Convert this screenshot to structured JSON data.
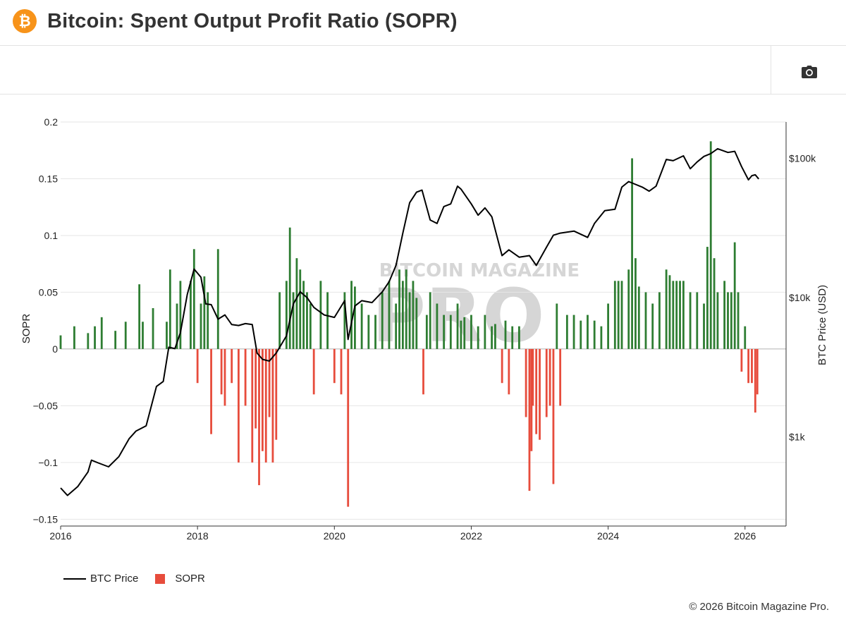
{
  "header": {
    "title": "Bitcoin: Spent Output Profit Ratio (SOPR)",
    "logo_glyph": "₿",
    "logo_color": "#f7931a"
  },
  "toolbar": {
    "camera_icon": "camera-icon"
  },
  "watermark": {
    "top": "BITCOIN MAGAZINE",
    "big": "PRO"
  },
  "legend": {
    "price_label": "BTC Price",
    "sopr_label": "SOPR"
  },
  "footer": {
    "copyright": "© 2026 Bitcoin Magazine Pro."
  },
  "colors": {
    "positive": "#2e7d32",
    "negative": "#e74c3c",
    "price_line": "#000000"
  },
  "chart_data": {
    "type": "bar",
    "title": "Bitcoin: Spent Output Profit Ratio (SOPR)",
    "xlabel": "",
    "ylabel": "SOPR",
    "y2label": "BTC Price (USD)",
    "x_ticks": [
      "2016",
      "2018",
      "2020",
      "2022",
      "2024",
      "2026"
    ],
    "y_ticks": [
      "0.2",
      "0.15",
      "0.1",
      "0.05",
      "0",
      "−0.05",
      "−0.1",
      "−0.15"
    ],
    "y2_ticks": [
      "$1k",
      "$10k",
      "$100k"
    ],
    "ylim": [
      -0.156,
      0.2
    ],
    "y2_log_range": [
      2.36,
      5.26
    ],
    "xlim": [
      2016.0,
      2026.6
    ],
    "series": [
      {
        "name": "BTC Price",
        "type": "line",
        "x": [
          2016.0,
          2016.1,
          2016.25,
          2016.4,
          2016.45,
          2016.55,
          2016.7,
          2016.85,
          2017.0,
          2017.1,
          2017.25,
          2017.4,
          2017.5,
          2017.58,
          2017.67,
          2017.75,
          2017.85,
          2017.95,
          2018.05,
          2018.12,
          2018.2,
          2018.3,
          2018.4,
          2018.5,
          2018.6,
          2018.7,
          2018.8,
          2018.87,
          2018.95,
          2019.05,
          2019.15,
          2019.3,
          2019.4,
          2019.5,
          2019.6,
          2019.7,
          2019.85,
          2020.0,
          2020.15,
          2020.2,
          2020.3,
          2020.4,
          2020.55,
          2020.7,
          2020.8,
          2020.9,
          2021.0,
          2021.1,
          2021.2,
          2021.28,
          2021.4,
          2021.5,
          2021.6,
          2021.7,
          2021.8,
          2021.85,
          2022.0,
          2022.1,
          2022.2,
          2022.3,
          2022.45,
          2022.55,
          2022.7,
          2022.85,
          2022.95,
          2023.1,
          2023.2,
          2023.3,
          2023.5,
          2023.7,
          2023.8,
          2023.95,
          2024.1,
          2024.2,
          2024.3,
          2024.5,
          2024.6,
          2024.7,
          2024.85,
          2024.95,
          2025.1,
          2025.2,
          2025.3,
          2025.4,
          2025.5,
          2025.6,
          2025.75,
          2025.85,
          2025.95,
          2026.05,
          2026.1,
          2026.15,
          2026.2
        ],
        "values": [
          430,
          380,
          440,
          560,
          680,
          650,
          610,
          720,
          970,
          1100,
          1200,
          2300,
          2500,
          4400,
          4300,
          5600,
          10500,
          16000,
          14000,
          9000,
          8900,
          7000,
          7500,
          6400,
          6300,
          6500,
          6400,
          4000,
          3600,
          3500,
          4000,
          5300,
          9000,
          11000,
          10000,
          8500,
          7500,
          7200,
          9500,
          5000,
          8700,
          9500,
          9200,
          11000,
          13000,
          17000,
          29000,
          48000,
          57000,
          59000,
          36000,
          34000,
          45000,
          47000,
          63000,
          60000,
          47000,
          39000,
          44000,
          38000,
          20000,
          22000,
          19500,
          20000,
          17000,
          23000,
          28000,
          29000,
          30000,
          27000,
          34000,
          42000,
          43000,
          62000,
          68000,
          62000,
          58000,
          63000,
          98000,
          96000,
          104000,
          84000,
          94000,
          103000,
          108000,
          117000,
          110000,
          112000,
          87000,
          70000,
          75000,
          76000,
          71000
        ]
      },
      {
        "name": "SOPR",
        "type": "bar",
        "x": [
          2016.0,
          2016.2,
          2016.4,
          2016.5,
          2016.6,
          2016.8,
          2016.95,
          2017.15,
          2017.2,
          2017.35,
          2017.55,
          2017.6,
          2017.7,
          2017.75,
          2017.9,
          2017.95,
          2018.0,
          2018.05,
          2018.1,
          2018.15,
          2018.2,
          2018.3,
          2018.35,
          2018.4,
          2018.5,
          2018.6,
          2018.7,
          2018.8,
          2018.85,
          2018.9,
          2018.95,
          2019.0,
          2019.05,
          2019.1,
          2019.15,
          2019.2,
          2019.3,
          2019.35,
          2019.4,
          2019.45,
          2019.5,
          2019.55,
          2019.6,
          2019.65,
          2019.7,
          2019.8,
          2019.9,
          2020.0,
          2020.1,
          2020.15,
          2020.2,
          2020.25,
          2020.3,
          2020.4,
          2020.5,
          2020.6,
          2020.7,
          2020.8,
          2020.9,
          2020.95,
          2021.0,
          2021.05,
          2021.1,
          2021.15,
          2021.2,
          2021.3,
          2021.35,
          2021.4,
          2021.5,
          2021.6,
          2021.7,
          2021.8,
          2021.85,
          2021.9,
          2022.0,
          2022.1,
          2022.2,
          2022.3,
          2022.35,
          2022.45,
          2022.5,
          2022.55,
          2022.6,
          2022.7,
          2022.8,
          2022.85,
          2022.88,
          2022.9,
          2022.95,
          2023.0,
          2023.1,
          2023.15,
          2023.2,
          2023.25,
          2023.3,
          2023.4,
          2023.5,
          2023.6,
          2023.7,
          2023.8,
          2023.9,
          2024.0,
          2024.1,
          2024.15,
          2024.2,
          2024.3,
          2024.35,
          2024.4,
          2024.45,
          2024.55,
          2024.65,
          2024.75,
          2024.85,
          2024.9,
          2024.95,
          2025.0,
          2025.05,
          2025.1,
          2025.2,
          2025.3,
          2025.4,
          2025.45,
          2025.5,
          2025.55,
          2025.6,
          2025.7,
          2025.75,
          2025.8,
          2025.85,
          2025.9,
          2025.95,
          2026.0,
          2026.05,
          2026.1,
          2026.15,
          2026.18
        ],
        "values": [
          0.012,
          0.02,
          0.014,
          0.02,
          0.028,
          0.016,
          0.024,
          0.057,
          0.024,
          0.036,
          0.024,
          0.07,
          0.04,
          0.06,
          0.06,
          0.088,
          -0.03,
          0.04,
          0.064,
          0.05,
          -0.075,
          0.088,
          -0.04,
          -0.05,
          -0.03,
          -0.1,
          -0.05,
          -0.1,
          -0.07,
          -0.12,
          -0.09,
          -0.1,
          -0.06,
          -0.1,
          -0.08,
          0.05,
          0.06,
          0.107,
          0.05,
          0.08,
          0.07,
          0.06,
          0.05,
          0.04,
          -0.04,
          0.06,
          0.05,
          -0.03,
          -0.04,
          0.05,
          -0.139,
          0.06,
          0.055,
          0.04,
          0.03,
          0.03,
          0.05,
          0.06,
          0.04,
          0.07,
          0.06,
          0.07,
          0.05,
          0.06,
          0.045,
          -0.04,
          0.03,
          0.05,
          0.04,
          0.03,
          0.03,
          0.04,
          0.025,
          0.028,
          0.03,
          0.02,
          0.03,
          0.02,
          0.022,
          -0.03,
          0.025,
          -0.04,
          0.02,
          0.02,
          -0.06,
          -0.125,
          -0.09,
          -0.05,
          -0.075,
          -0.08,
          -0.06,
          -0.05,
          -0.119,
          0.04,
          -0.05,
          0.03,
          0.03,
          0.025,
          0.03,
          0.025,
          0.02,
          0.04,
          0.06,
          0.06,
          0.06,
          0.07,
          0.168,
          0.08,
          0.055,
          0.05,
          0.04,
          0.05,
          0.07,
          0.065,
          0.06,
          0.06,
          0.06,
          0.06,
          0.05,
          0.05,
          0.04,
          0.09,
          0.183,
          0.08,
          0.05,
          0.06,
          0.05,
          0.05,
          0.094,
          0.05,
          -0.02,
          0.02,
          -0.03,
          -0.03,
          -0.056,
          -0.04
        ]
      }
    ],
    "grid": true,
    "legend_position": "bottom-left"
  }
}
